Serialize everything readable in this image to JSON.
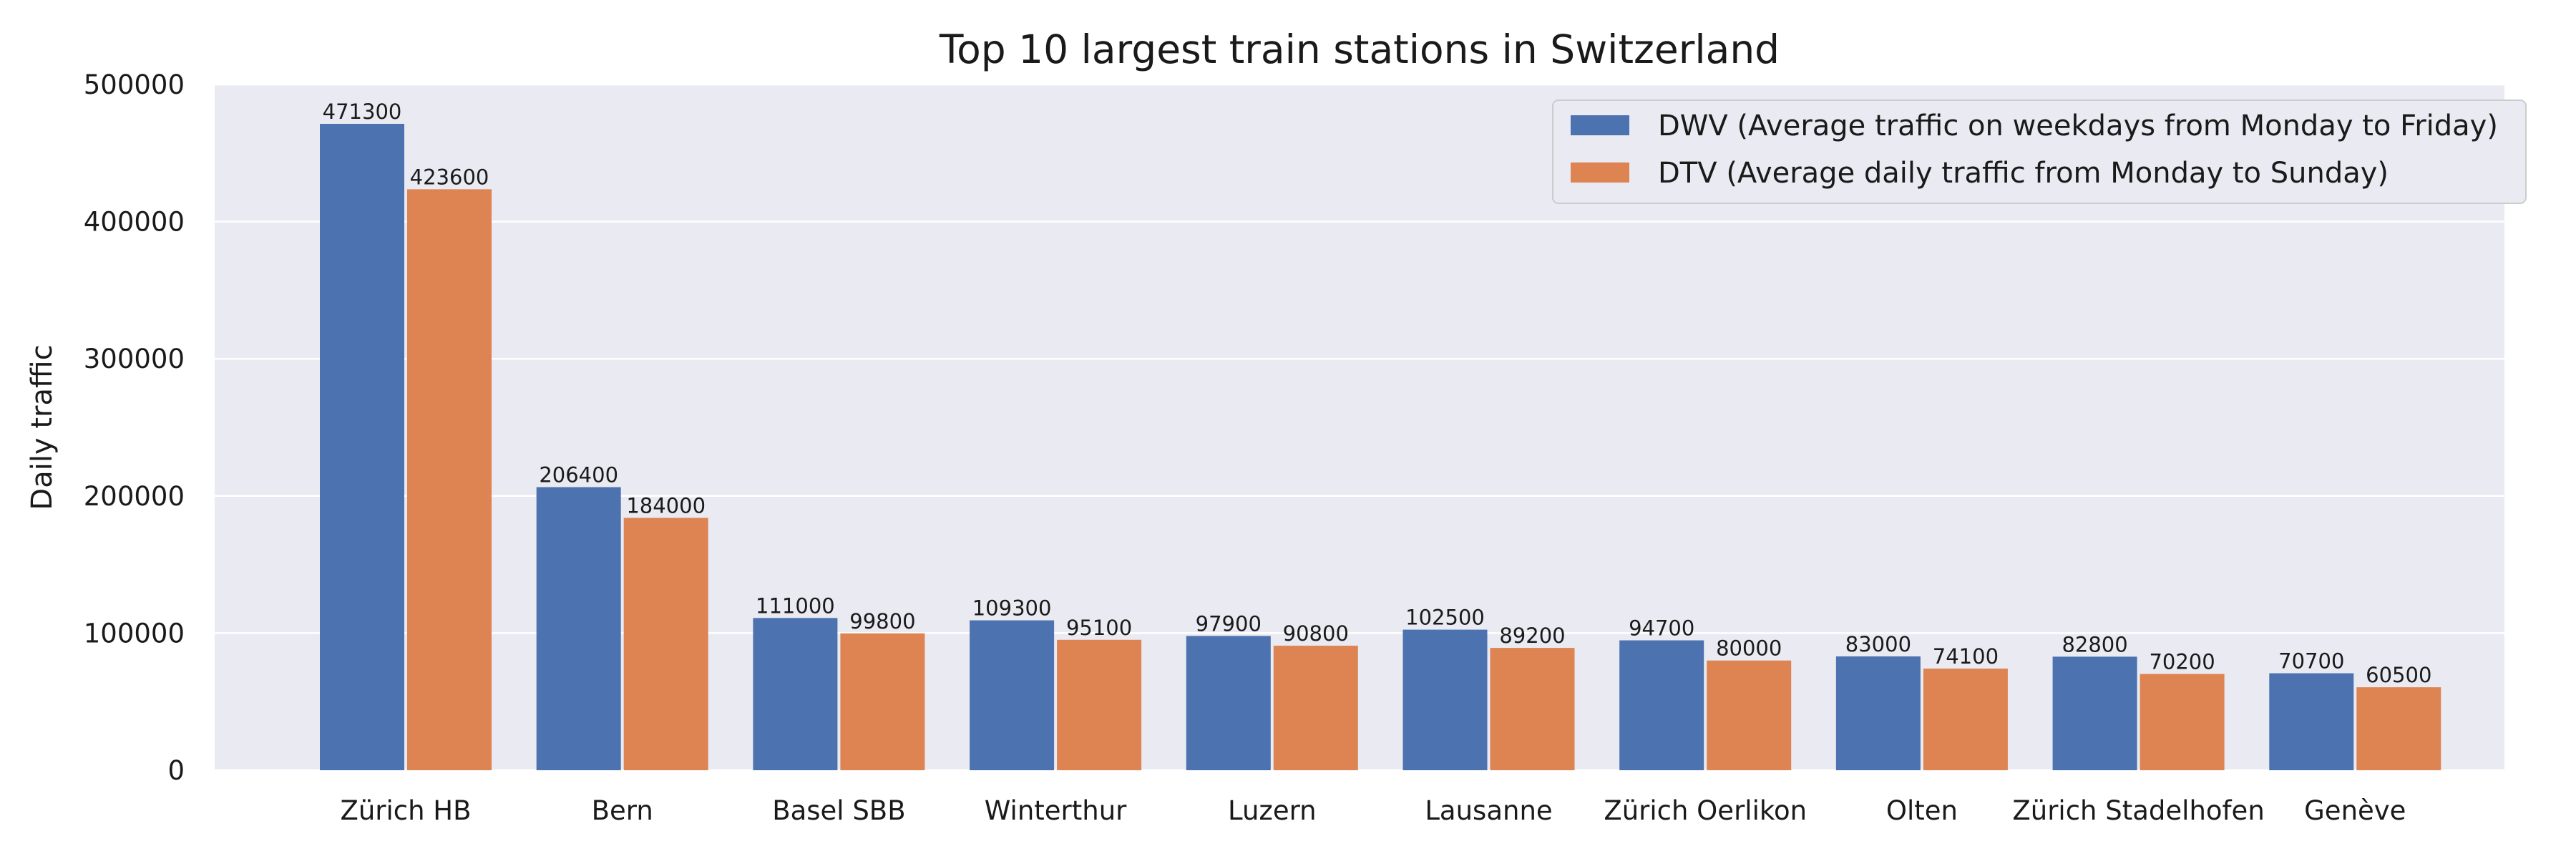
{
  "chart_data": {
    "type": "bar",
    "title": "Top 10 largest train stations in Switzerland",
    "xlabel": "",
    "ylabel": "Daily traffic",
    "ylim": [
      0,
      500000
    ],
    "yticks": [
      "0",
      "100000",
      "200000",
      "300000",
      "400000",
      "500000"
    ],
    "grid": true,
    "legend_position": "top-right",
    "categories": [
      "Zürich HB",
      "Bern",
      "Basel SBB",
      "Winterthur",
      "Luzern",
      "Lausanne",
      "Zürich Oerlikon",
      "Olten",
      "Zürich Stadelhofen",
      "Genève"
    ],
    "series": [
      {
        "name": "DWV (Average traffic on weekdays from Monday to Friday)",
        "color": "#4c72b0",
        "values": [
          471300,
          206400,
          111000,
          109300,
          97900,
          102500,
          94700,
          83000,
          82800,
          70700
        ]
      },
      {
        "name": "DTV (Average daily traffic from Monday to Sunday)",
        "color": "#dd8452",
        "values": [
          423600,
          184000,
          99800,
          95100,
          90800,
          89200,
          80000,
          74100,
          70200,
          60500
        ]
      }
    ],
    "colors": {
      "plot_background": "#eaeaf2",
      "grid": "#ffffff"
    }
  }
}
